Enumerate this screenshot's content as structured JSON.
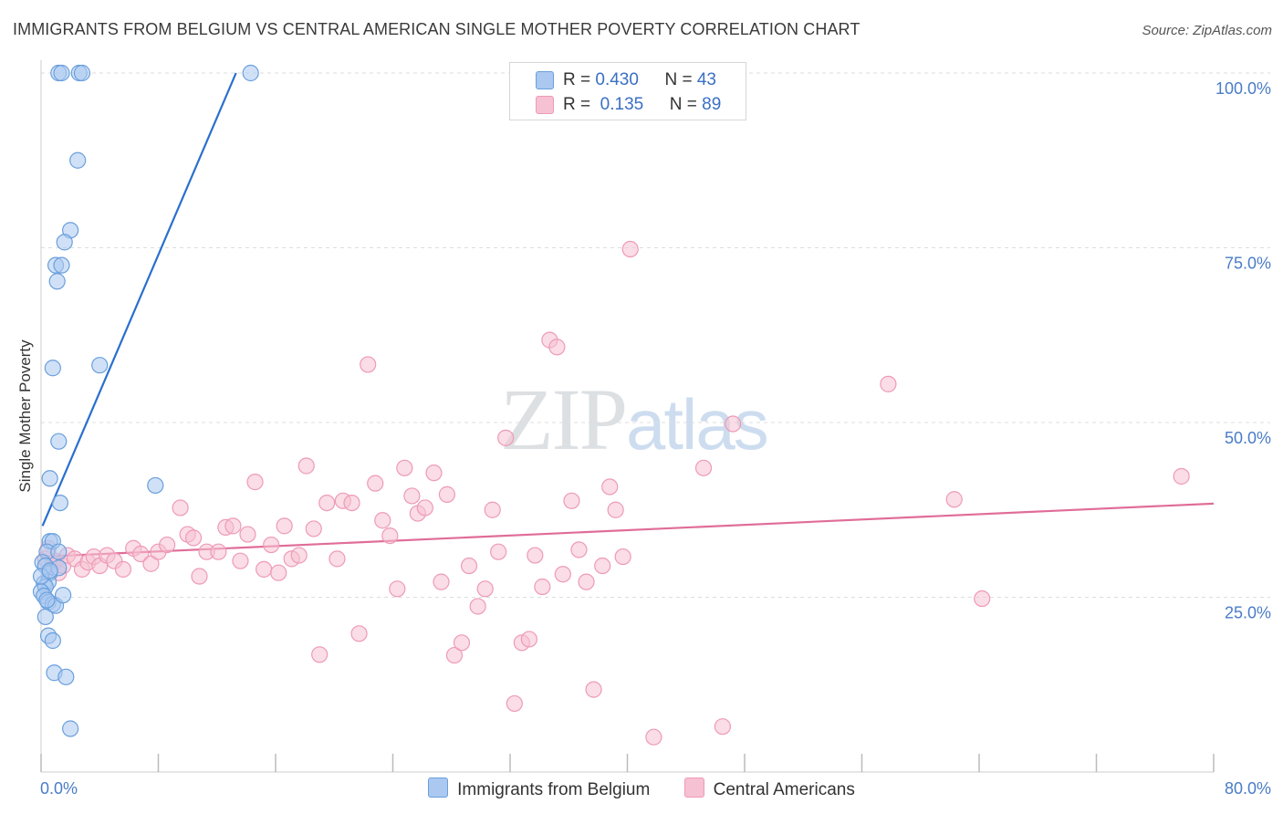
{
  "header": {
    "title": "IMMIGRANTS FROM BELGIUM VS CENTRAL AMERICAN SINGLE MOTHER POVERTY CORRELATION CHART",
    "source": "Source: ZipAtlas.com"
  },
  "watermark": {
    "part1": "ZIP",
    "part2": "atlas"
  },
  "legend_top": {
    "rows": [
      {
        "r_label": "R = ",
        "r_value": "0.430",
        "n_label": "N = ",
        "n_value": "43"
      },
      {
        "r_label": "R = ",
        "r_value": " 0.135",
        "n_label": "N = ",
        "n_value": "89"
      }
    ]
  },
  "legend_bottom": {
    "items": [
      {
        "label": "Immigrants from Belgium"
      },
      {
        "label": "Central Americans"
      }
    ]
  },
  "colors": {
    "blue_fill": "#aac8f0",
    "blue_stroke": "#6a9fdc",
    "blue_line": "#2a6fcf",
    "pink_fill": "#f6c1d2",
    "pink_stroke": "#ee9ab6",
    "pink_line": "#e06d98",
    "tick_text": "#4a7cc7",
    "grid": "#dddddd"
  },
  "chart_data": {
    "type": "scatter",
    "title": "IMMIGRANTS FROM BELGIUM VS CENTRAL AMERICAN SINGLE MOTHER POVERTY CORRELATION CHART",
    "xlabel": "",
    "ylabel": "Single Mother Poverty",
    "xlim": [
      0,
      80
    ],
    "ylim": [
      0,
      100
    ],
    "x_tick_labels": [
      "0.0%",
      "80.0%"
    ],
    "y_ticks": [
      25,
      50,
      75,
      100
    ],
    "y_tick_labels": [
      "25.0%",
      "50.0%",
      "75.0%",
      "100.0%"
    ],
    "grid": true,
    "legend_position": "bottom",
    "series": [
      {
        "name": "Immigrants from Belgium",
        "R": 0.43,
        "N": 43,
        "trend": {
          "x": [
            0.1,
            13.3
          ],
          "y": [
            35.2,
            100
          ]
        },
        "points": [
          [
            1.2,
            100
          ],
          [
            1.4,
            100
          ],
          [
            2.6,
            100
          ],
          [
            2.8,
            100
          ],
          [
            14.3,
            100
          ],
          [
            2.5,
            87.5
          ],
          [
            2.0,
            77.5
          ],
          [
            1.6,
            75.8
          ],
          [
            1.0,
            72.5
          ],
          [
            1.4,
            72.5
          ],
          [
            1.1,
            70.2
          ],
          [
            4.0,
            58.2
          ],
          [
            0.8,
            57.8
          ],
          [
            1.2,
            47.3
          ],
          [
            0.6,
            42.0
          ],
          [
            1.3,
            38.5
          ],
          [
            7.8,
            41.0
          ],
          [
            0.6,
            33.0
          ],
          [
            0.8,
            33.0
          ],
          [
            0.4,
            31.5
          ],
          [
            1.2,
            31.5
          ],
          [
            0.1,
            30.0
          ],
          [
            0.3,
            29.5
          ],
          [
            0.6,
            28.5
          ],
          [
            1.2,
            29.2
          ],
          [
            0.2,
            27.0
          ],
          [
            0.5,
            27.2
          ],
          [
            0.3,
            26.5
          ],
          [
            0.0,
            25.8
          ],
          [
            0.2,
            25.2
          ],
          [
            0.5,
            24.3
          ],
          [
            0.8,
            24.0
          ],
          [
            1.0,
            23.8
          ],
          [
            1.5,
            25.3
          ],
          [
            0.3,
            22.2
          ],
          [
            0.5,
            19.5
          ],
          [
            0.8,
            18.8
          ],
          [
            0.9,
            14.2
          ],
          [
            1.7,
            13.6
          ],
          [
            2.0,
            6.2
          ],
          [
            0.0,
            28.0
          ],
          [
            0.6,
            28.8
          ],
          [
            0.4,
            24.6
          ]
        ]
      },
      {
        "name": "Central Americans",
        "R": 0.135,
        "N": 89,
        "trend": {
          "x": [
            0,
            80
          ],
          "y": [
            30.8,
            38.4
          ]
        },
        "points": [
          [
            0.3,
            30.5
          ],
          [
            0.5,
            32.0
          ],
          [
            0.8,
            29.8
          ],
          [
            1.0,
            30.2
          ],
          [
            1.2,
            28.5
          ],
          [
            1.5,
            29.5
          ],
          [
            1.8,
            31.0
          ],
          [
            2.3,
            30.5
          ],
          [
            2.8,
            29.0
          ],
          [
            3.2,
            30.0
          ],
          [
            3.6,
            30.8
          ],
          [
            4.0,
            29.5
          ],
          [
            4.5,
            31.0
          ],
          [
            5.0,
            30.2
          ],
          [
            5.6,
            29.0
          ],
          [
            6.3,
            32.0
          ],
          [
            6.8,
            31.2
          ],
          [
            7.5,
            29.8
          ],
          [
            8.0,
            31.5
          ],
          [
            8.6,
            32.5
          ],
          [
            9.5,
            37.8
          ],
          [
            10.0,
            34.0
          ],
          [
            10.4,
            33.5
          ],
          [
            10.8,
            28.0
          ],
          [
            11.3,
            31.5
          ],
          [
            12.1,
            31.5
          ],
          [
            12.6,
            35.0
          ],
          [
            13.1,
            35.2
          ],
          [
            13.6,
            30.2
          ],
          [
            14.1,
            34.0
          ],
          [
            14.6,
            41.5
          ],
          [
            15.2,
            29.0
          ],
          [
            15.7,
            32.5
          ],
          [
            16.2,
            28.5
          ],
          [
            16.6,
            35.2
          ],
          [
            17.1,
            30.5
          ],
          [
            17.6,
            31.0
          ],
          [
            18.1,
            43.8
          ],
          [
            18.6,
            34.8
          ],
          [
            19.0,
            16.8
          ],
          [
            19.5,
            38.5
          ],
          [
            20.2,
            30.5
          ],
          [
            20.6,
            38.8
          ],
          [
            21.2,
            38.5
          ],
          [
            21.7,
            19.8
          ],
          [
            22.3,
            58.3
          ],
          [
            22.8,
            41.3
          ],
          [
            23.3,
            36.0
          ],
          [
            23.8,
            33.8
          ],
          [
            24.3,
            26.2
          ],
          [
            24.8,
            43.5
          ],
          [
            25.3,
            39.5
          ],
          [
            25.7,
            37.0
          ],
          [
            26.2,
            37.8
          ],
          [
            26.8,
            42.8
          ],
          [
            27.3,
            27.2
          ],
          [
            27.7,
            39.7
          ],
          [
            28.2,
            16.7
          ],
          [
            28.7,
            18.5
          ],
          [
            29.2,
            29.5
          ],
          [
            29.8,
            23.7
          ],
          [
            30.3,
            26.2
          ],
          [
            30.8,
            37.5
          ],
          [
            31.2,
            31.5
          ],
          [
            31.7,
            47.8
          ],
          [
            32.3,
            9.8
          ],
          [
            32.8,
            18.5
          ],
          [
            33.3,
            19.0
          ],
          [
            33.7,
            31.0
          ],
          [
            34.2,
            26.5
          ],
          [
            34.7,
            61.8
          ],
          [
            35.2,
            60.8
          ],
          [
            35.6,
            28.3
          ],
          [
            36.2,
            38.8
          ],
          [
            36.7,
            31.8
          ],
          [
            37.2,
            27.2
          ],
          [
            37.7,
            11.8
          ],
          [
            38.3,
            29.5
          ],
          [
            38.8,
            40.8
          ],
          [
            39.2,
            37.5
          ],
          [
            39.7,
            30.8
          ],
          [
            40.2,
            74.8
          ],
          [
            41.8,
            5.0
          ],
          [
            45.2,
            43.5
          ],
          [
            46.5,
            6.5
          ],
          [
            47.2,
            49.8
          ],
          [
            57.8,
            55.5
          ],
          [
            62.3,
            39.0
          ],
          [
            64.2,
            24.8
          ],
          [
            77.8,
            42.3
          ]
        ]
      }
    ]
  }
}
